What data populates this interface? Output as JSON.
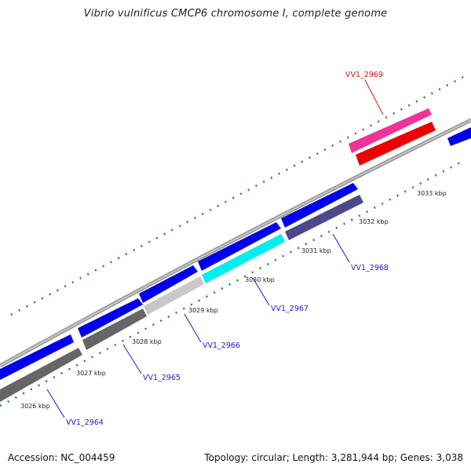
{
  "map": {
    "title": "Vibrio vulnificus CMCP6 chromosome I, complete genome"
  },
  "footer": {
    "accession": "Accession: NC_004459",
    "summary": "Topology: circular; Length: 3,281,944 bp; Genes: 3,038"
  },
  "colors": {
    "backbone": "#9a9a9a",
    "tick": "#1f8a1f",
    "label_blue": "#1a1acc",
    "label_red": "#e01010"
  },
  "kbp_ticks": [
    "3026 kbp",
    "3027 kbp",
    "3028 kbp",
    "3029 kbp",
    "3030 kbp",
    "3031 kbp",
    "3032 kbp",
    "3033 kbp"
  ],
  "genes": [
    {
      "id": "VV1_2964",
      "label_color": "#1a1acc"
    },
    {
      "id": "VV1_2965",
      "label_color": "#1a1acc"
    },
    {
      "id": "VV1_2966",
      "label_color": "#1a1acc"
    },
    {
      "id": "VV1_2967",
      "label_color": "#1a1acc"
    },
    {
      "id": "VV1_2968",
      "label_color": "#1a1acc"
    },
    {
      "id": "VV1_2969",
      "label_color": "#e01010"
    }
  ],
  "tracks": {
    "outer_cds": [
      "#0000ee",
      "#0000ee",
      "#0000ee",
      "#0000ee",
      "#0000ee",
      "#0000ee",
      "#ee3399",
      "#0000ee"
    ],
    "inner_features": [
      "#666666",
      "#666666",
      "#c8c8c8",
      "#00eeee",
      "#4a4a8a",
      "#ee0000"
    ]
  }
}
